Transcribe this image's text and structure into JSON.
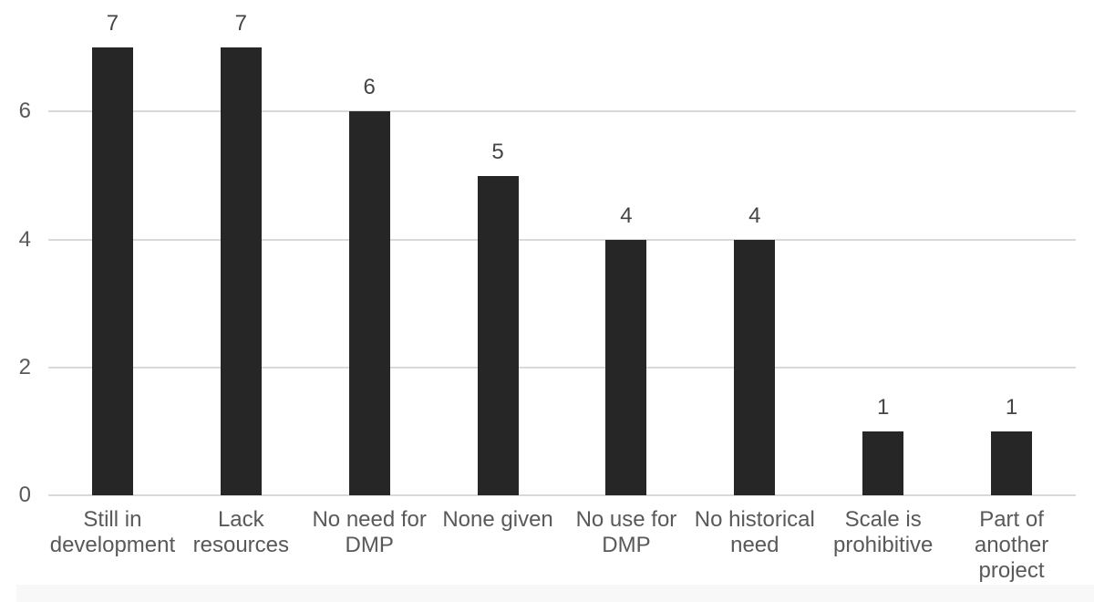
{
  "chart_data": {
    "type": "bar",
    "title": "",
    "xlabel": "",
    "ylabel": "",
    "categories": [
      "Still in development",
      "Lack resources",
      "No need for DMP",
      "None given",
      "No use for DMP",
      "No historical need",
      "Scale is prohibitive",
      "Part of another project"
    ],
    "values": [
      7,
      7,
      6,
      5,
      4,
      4,
      1,
      1
    ],
    "value_labels": [
      "7",
      "7",
      "6",
      "5",
      "4",
      "4",
      "1",
      "1"
    ],
    "yticks": [
      0,
      2,
      4,
      6
    ],
    "ytick_labels": [
      "0",
      "2",
      "4",
      "6"
    ],
    "ylim": [
      0,
      7.75
    ],
    "grid": true,
    "legend": "none",
    "colors": {
      "bar": "#262626",
      "gridline": "#d9d9d9",
      "axis_text": "#595959",
      "value_text": "#454545",
      "background": "#ffffff"
    }
  }
}
